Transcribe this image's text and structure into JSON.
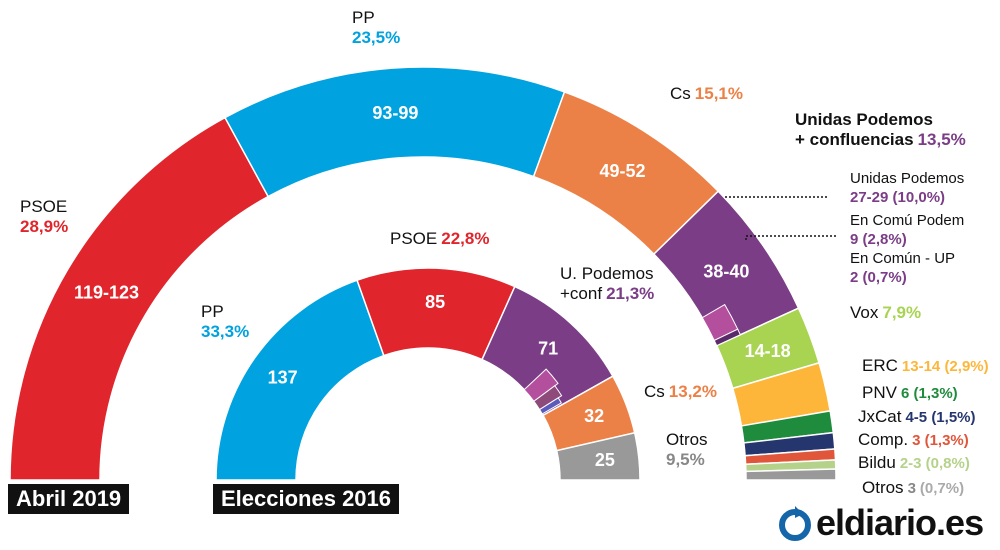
{
  "chart_data": [
    {
      "type": "pie",
      "variant": "semicircle-parliament",
      "title": "Abril 2019",
      "series": [
        {
          "name": "PSOE",
          "seats": "119-123",
          "pct": "28,9%",
          "color": "#e0262c"
        },
        {
          "name": "PP",
          "seats": "93-99",
          "pct": "23,5%",
          "color": "#00a2df"
        },
        {
          "name": "Cs",
          "seats": "49-52",
          "pct": "15,1%",
          "color": "#ec8147"
        },
        {
          "name": "Unidas Podemos + confluencias",
          "seats": "38-40",
          "pct": "13,5%",
          "color": "#7a3d86",
          "sub": [
            {
              "name": "Unidas Podemos",
              "seats": "27-29",
              "pct": "(10,0%)"
            },
            {
              "name": "En Comú Podem",
              "seats": "9",
              "pct": "(2,8%)"
            },
            {
              "name": "En Común - UP",
              "seats": "2",
              "pct": "(0,7%)"
            }
          ]
        },
        {
          "name": "Vox",
          "seats": "14-18",
          "pct": "7,9%",
          "color": "#a8d452"
        },
        {
          "name": "ERC",
          "seats": "13-14",
          "pct": "(2,9%)",
          "color": "#fdb63a"
        },
        {
          "name": "PNV",
          "seats": "6",
          "pct": "(1,3%)",
          "color": "#1f8b3c"
        },
        {
          "name": "JxCat",
          "seats": "4-5",
          "pct": "(1,5%)",
          "color": "#25366e"
        },
        {
          "name": "Comp.",
          "seats": "3",
          "pct": "(1,3%)",
          "color": "#e0563a"
        },
        {
          "name": "Bildu",
          "seats": "2-3",
          "pct": "(0,8%)",
          "color": "#b5d28a"
        },
        {
          "name": "Otros",
          "seats": "3",
          "pct": "(0,7%)",
          "color": "#999999"
        }
      ]
    },
    {
      "type": "pie",
      "variant": "semicircle-parliament",
      "title": "Elecciones 2016",
      "series": [
        {
          "name": "PP",
          "seats": "137",
          "pct": "33,3%",
          "color": "#00a2df"
        },
        {
          "name": "PSOE",
          "seats": "85",
          "pct": "22,8%",
          "color": "#e0262c"
        },
        {
          "name": "U. Podemos +conf",
          "seats": "71",
          "pct": "21,3%",
          "color": "#7a3d86"
        },
        {
          "name": "Cs",
          "seats": "32",
          "pct": "13,2%",
          "color": "#ec8147"
        },
        {
          "name": "Otros",
          "seats": "25",
          "pct": "9,5%",
          "color": "#999999"
        }
      ]
    }
  ],
  "labels": {
    "a_psoe": {
      "name": "PSOE",
      "pct": "28,9%"
    },
    "a_pp": {
      "name": "PP",
      "pct": "23,5%"
    },
    "a_cs": {
      "name": "Cs",
      "pct": "15,1%"
    },
    "a_up1": "Unidas Podemos",
    "a_up2": "+ confluencias",
    "a_up_pct": "13,5%",
    "a_up_sub1_name": "Unidas Podemos",
    "a_up_sub1_val": "27-29 (10,0%)",
    "a_up_sub2_name": "En Comú Podem",
    "a_up_sub2_val": "9 (2,8%)",
    "a_up_sub3_name": "En Común - UP",
    "a_up_sub3_val": "2 (0,7%)",
    "a_vox": {
      "name": "Vox",
      "pct": "7,9%"
    },
    "a_erc": {
      "name": "ERC",
      "val": "13-14 (2,9%)"
    },
    "a_pnv": {
      "name": "PNV",
      "val": "6 (1,3%)"
    },
    "a_jxcat": {
      "name": "JxCat",
      "val": "4-5 (1,5%)"
    },
    "a_comp": {
      "name": "Comp.",
      "val": "3 (1,3%)"
    },
    "a_bildu": {
      "name": "Bildu",
      "val": "2-3 (0,8%)"
    },
    "a_otros": {
      "name": "Otros",
      "seats": "3",
      "pct": "(0,7%)"
    },
    "e_pp": {
      "name": "PP",
      "pct": "33,3%"
    },
    "e_psoe": {
      "name": "PSOE",
      "pct": "22,8%"
    },
    "e_up1": "U. Podemos",
    "e_up2": "+conf",
    "e_up_pct": "21,3%",
    "e_cs": {
      "name": "Cs",
      "pct": "13,2%"
    },
    "e_otros": {
      "name": "Otros",
      "pct": "9,5%"
    }
  },
  "pill_2019": "Abril 2019",
  "pill_2016": "Elecciones 2016",
  "logo_text": "eldiario.es",
  "colors": {
    "psoe": "#e0262c",
    "pp": "#00a2df",
    "cs": "#ec8147",
    "up": "#7a3d86",
    "vox": "#a8d452",
    "erc": "#fdb63a",
    "pnv": "#1f8b3c",
    "jxcat": "#25366e",
    "comp": "#e0563a",
    "bildu": "#b5d28a",
    "otros": "#999999",
    "logo": "#1565a9"
  }
}
